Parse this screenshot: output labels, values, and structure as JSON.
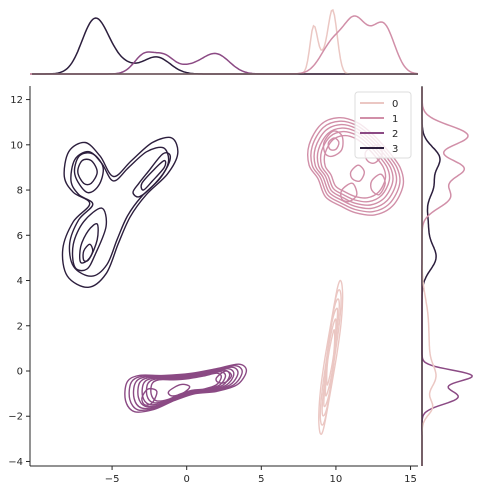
{
  "chart_data": {
    "type": "kde-joint",
    "title": "",
    "xlabel": "",
    "ylabel": "",
    "xlim": [
      -10.5,
      15.5
    ],
    "ylim": [
      -4.2,
      12.6
    ],
    "x_ticks": [
      -5,
      0,
      5,
      10,
      15
    ],
    "x_tick_labels": [
      "−5",
      "0",
      "5",
      "10",
      "15"
    ],
    "y_ticks": [
      -4,
      -2,
      0,
      2,
      4,
      6,
      8,
      10,
      12
    ],
    "y_tick_labels": [
      "−4",
      "−2",
      "0",
      "2",
      "4",
      "6",
      "8",
      "10",
      "12"
    ],
    "grid": false,
    "legend": {
      "placement": "top-right",
      "entries": [
        "0",
        "1",
        "2",
        "3"
      ]
    },
    "series": [
      {
        "name": "0",
        "color": "#ebc7c3",
        "center": [
          9.8,
          0.6
        ],
        "x_range": [
          8.2,
          10.6
        ],
        "y_range": [
          -2.8,
          3.9
        ],
        "description_shape": "thin diagonal ellipse"
      },
      {
        "name": "1",
        "color": "#d18fa8",
        "center": [
          11.3,
          9.0
        ],
        "x_range": [
          8.1,
          14.5
        ],
        "y_range": [
          6.8,
          11.3
        ],
        "description_shape": "irregular multi-peak blob"
      },
      {
        "name": "2",
        "color": "#8b4a84",
        "center": [
          0.0,
          -0.6
        ],
        "x_range": [
          -4.0,
          4.0
        ],
        "y_range": [
          -1.8,
          0.4
        ],
        "description_shape": "flat horizontal band"
      },
      {
        "name": "3",
        "color": "#2c1e3d",
        "center": [
          -4.5,
          7.2
        ],
        "x_range": [
          -8.2,
          -0.6
        ],
        "y_range": [
          3.6,
          10.4
        ],
        "description_shape": "Y-shaped three-lobe"
      }
    ]
  }
}
